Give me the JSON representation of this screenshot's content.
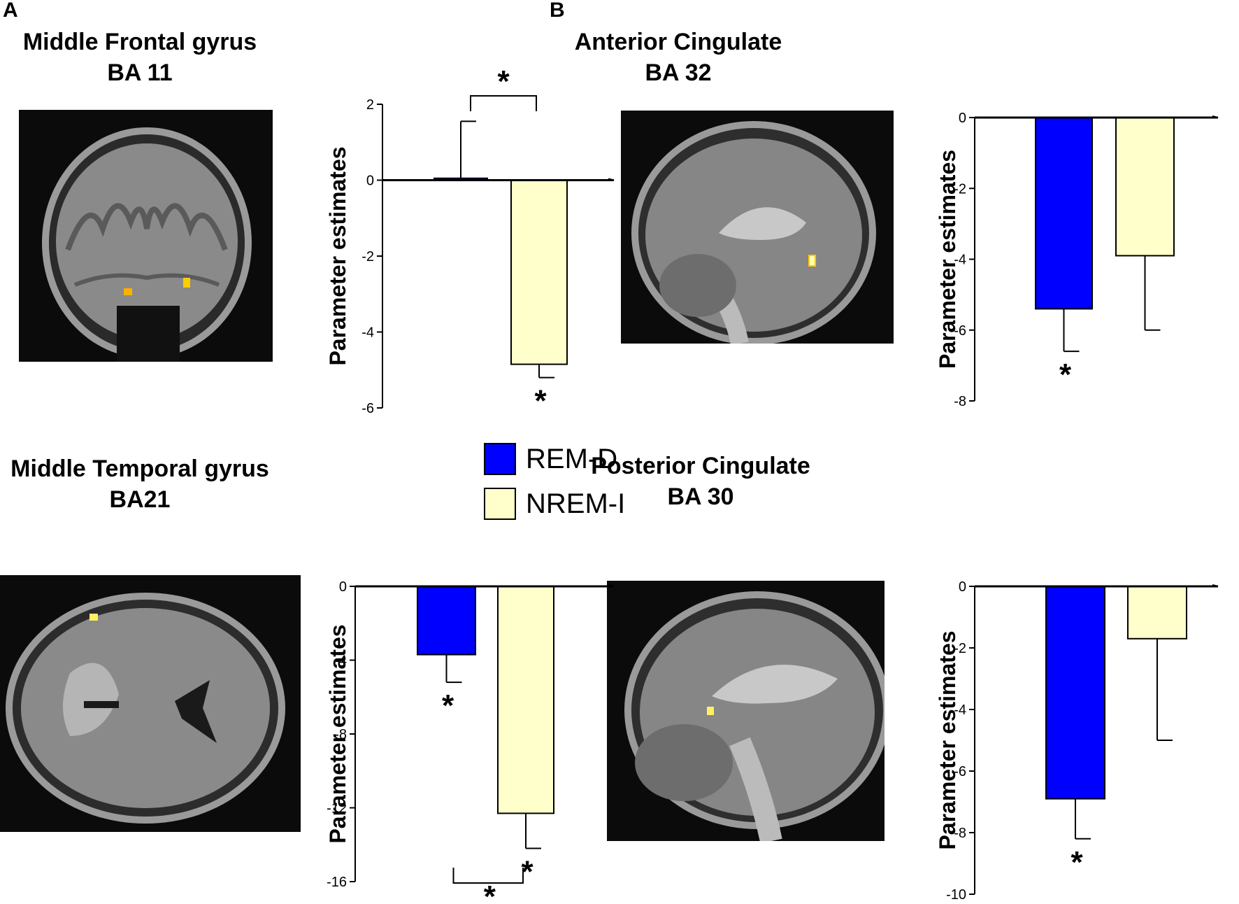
{
  "panel_labels": [
    "A",
    "B"
  ],
  "legend": [
    {
      "label": "REM-D",
      "color": "#0000ff"
    },
    {
      "label": "NREM-I",
      "color": "#ffffcc"
    }
  ],
  "panels": [
    {
      "title_line1": "Middle Frontal gyrus",
      "title_line2": "BA 11",
      "view": "coronal"
    },
    {
      "title_line1": "Anterior Cingulate",
      "title_line2": "BA 32",
      "view": "sagittal"
    },
    {
      "title_line1": "Middle Temporal gyrus",
      "title_line2": "BA21",
      "view": "axial"
    },
    {
      "title_line1": "Posterior Cingulate",
      "title_line2": "BA 30",
      "view": "sagittal"
    }
  ],
  "chart_data": [
    {
      "type": "bar",
      "region": "Middle Frontal gyrus BA 11",
      "ylabel": "Parameter estimates",
      "ylim": [
        -6,
        2
      ],
      "yticks": [
        2,
        0,
        -2,
        -4,
        -6
      ],
      "categories": [
        "REM-D",
        "NREM-I"
      ],
      "values": [
        0.05,
        -4.85
      ],
      "errors": [
        1.5,
        0.35
      ],
      "stars": [
        "",
        "*"
      ],
      "comparison": "*"
    },
    {
      "type": "bar",
      "region": "Anterior Cingulate BA 32",
      "ylabel": "Parameter estimates",
      "ylim": [
        -8,
        0
      ],
      "yticks": [
        0,
        -2,
        -4,
        -6,
        -8
      ],
      "categories": [
        "REM-D",
        "NREM-I"
      ],
      "values": [
        -5.4,
        -3.9
      ],
      "errors": [
        1.2,
        2.1
      ],
      "stars": [
        "*",
        ""
      ],
      "comparison": ""
    },
    {
      "type": "bar",
      "region": "Middle Temporal gyrus BA21",
      "ylabel": "Parameter estimates",
      "ylim": [
        -16,
        0
      ],
      "yticks": [
        0,
        -4,
        -8,
        -12,
        -16
      ],
      "categories": [
        "REM-D",
        "NREM-I"
      ],
      "values": [
        -3.7,
        -12.3
      ],
      "errors": [
        1.5,
        1.9
      ],
      "stars": [
        "*",
        "*"
      ],
      "comparison": "*"
    },
    {
      "type": "bar",
      "region": "Posterior Cingulate BA 30",
      "ylabel": "Parameter estimates",
      "ylim": [
        -10,
        0
      ],
      "yticks": [
        0,
        -2,
        -4,
        -6,
        -8,
        -10
      ],
      "categories": [
        "REM-D",
        "NREM-I"
      ],
      "values": [
        -6.9,
        -1.7
      ],
      "errors": [
        1.3,
        3.3
      ],
      "stars": [
        "*",
        ""
      ],
      "comparison": ""
    }
  ]
}
